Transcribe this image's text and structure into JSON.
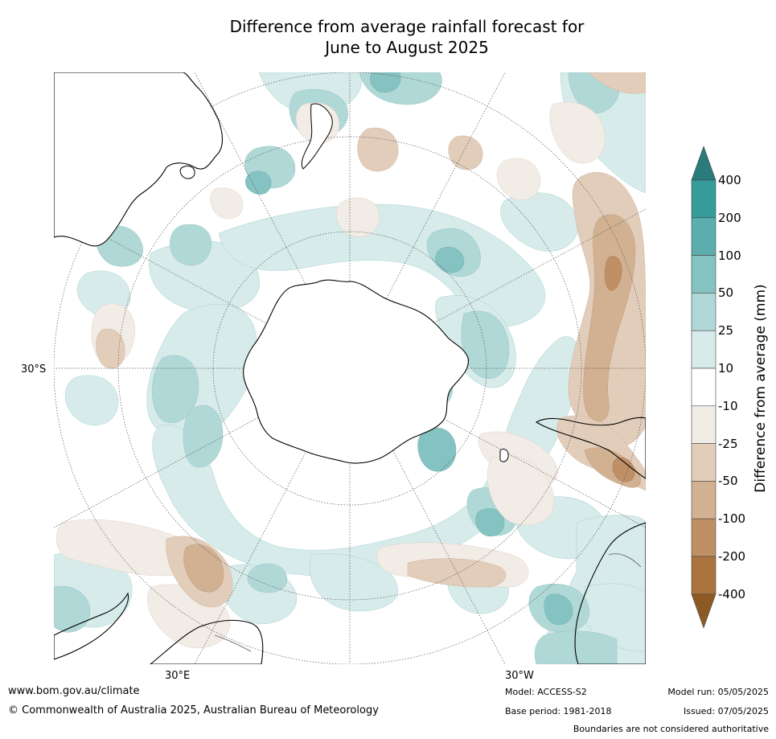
{
  "title": {
    "line1": "Difference from average rainfall forecast for",
    "line2": "June to August 2025"
  },
  "map": {
    "projection": "south polar stereographic",
    "lat_label": "30°S",
    "lon_labels": {
      "east": "30°E",
      "west": "30°W"
    }
  },
  "colorbar": {
    "title": "Difference from average (mm)",
    "ticks": [
      "400",
      "200",
      "100",
      "50",
      "25",
      "10",
      "-10",
      "-25",
      "-50",
      "-100",
      "-200",
      "-400"
    ],
    "colors": {
      "above_400": "#2a7b7b",
      "200_400": "#359c9a",
      "100_200": "#5cadad",
      "50_100": "#85c2c2",
      "25_50": "#b0d8d7",
      "10_25": "#d6ebea",
      "neutral": "#ffffff",
      "m10_m25": "#f2ece6",
      "m25_m50": "#e2cdbb",
      "m50_m100": "#d1b191",
      "m100_m200": "#bf9066",
      "m200_m400": "#ab743d",
      "below_m400": "#8d5a24"
    }
  },
  "footer": {
    "url": "www.bom.gov.au/climate",
    "copyright": "© Commonwealth of Australia 2025, Australian Bureau of Meteorology",
    "model": "Model: ACCESS-S2",
    "base_period": "Base period: 1981-2018",
    "model_run": "Model run: 05/05/2025",
    "issued": "Issued: 07/05/2025",
    "disclaimer": "Boundaries are not considered authoritative"
  }
}
